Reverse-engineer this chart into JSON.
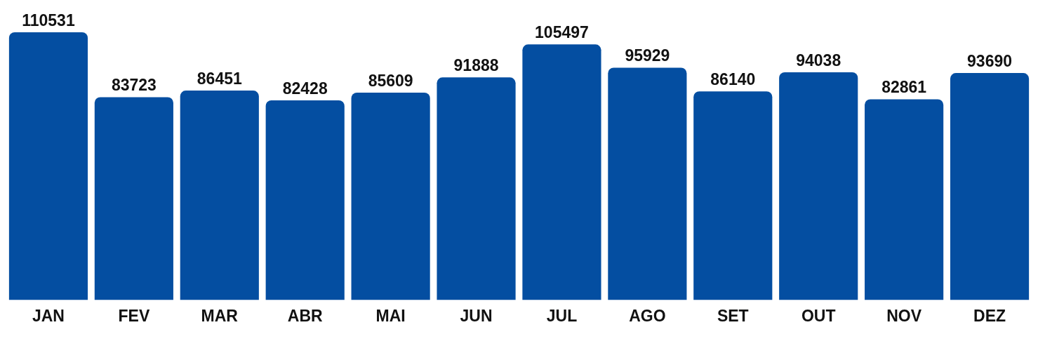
{
  "chart_data": {
    "type": "bar",
    "categories": [
      "JAN",
      "FEV",
      "MAR",
      "ABR",
      "MAI",
      "JUN",
      "JUL",
      "AGO",
      "SET",
      "OUT",
      "NOV",
      "DEZ"
    ],
    "values": [
      110531,
      83723,
      86451,
      82428,
      85609,
      91888,
      105497,
      95929,
      86140,
      94038,
      82861,
      93690
    ],
    "color": "#044ea1",
    "data_labels": true,
    "grid": false,
    "legend": false
  }
}
